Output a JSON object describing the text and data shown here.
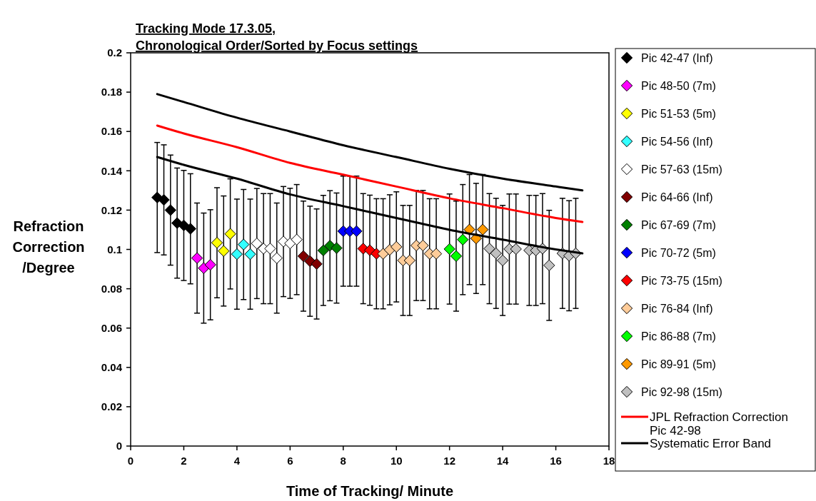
{
  "chart_data": {
    "type": "scatter",
    "title": "Tracking Mode 17.3.05,\nChronological Order/Sorted by Focus settings",
    "xlabel": "Time of Tracking/ Minute",
    "ylabel": "Refraction Correction /Degree",
    "xlim": [
      0,
      18
    ],
    "xticks": [
      0,
      2,
      4,
      6,
      8,
      10,
      12,
      14,
      16,
      18
    ],
    "ylim": [
      0,
      0.2
    ],
    "yticks": [
      0,
      0.02,
      0.04,
      0.06,
      0.08,
      0.1,
      0.12,
      0.14,
      0.16,
      0.18,
      0.2
    ],
    "marker": "diamond",
    "legend": "right",
    "grid": false,
    "series": [
      {
        "name": "Pic 42-47 (Inf)",
        "color": "#000000",
        "x": [
          1,
          1.25,
          1.5,
          1.75,
          2,
          2.25
        ],
        "values": [
          0.1264,
          0.1252,
          0.12,
          0.1134,
          0.1122,
          0.1105
        ],
        "errors": [
          0.028,
          0.028,
          0.028,
          0.028,
          0.028,
          0.028
        ]
      },
      {
        "name": "Pic 48-50 (7m)",
        "color": "#ff00ff",
        "x": [
          2.5,
          2.75,
          3
        ],
        "values": [
          0.0956,
          0.0905,
          0.0922
        ],
        "errors": [
          0.028,
          0.028,
          0.028
        ]
      },
      {
        "name": "Pic 51-53 (5m)",
        "color": "#ffff00",
        "x": [
          3.25,
          3.5,
          3.75
        ],
        "values": [
          0.1034,
          0.0992,
          0.1079
        ],
        "errors": [
          0.028,
          0.028,
          0.028
        ]
      },
      {
        "name": "Pic 54-56 (Inf)",
        "color": "#33ffff",
        "x": [
          4,
          4.25,
          4.5
        ],
        "values": [
          0.0976,
          0.1025,
          0.0976
        ],
        "errors": [
          0.028,
          0.028,
          0.028
        ]
      },
      {
        "name": "Pic 57-63 (15m)",
        "color": "#ffffff",
        "x": [
          4.75,
          5,
          5.25,
          5.5,
          5.75,
          6,
          6.25
        ],
        "values": [
          0.103,
          0.1004,
          0.1004,
          0.0956,
          0.104,
          0.1031,
          0.105
        ],
        "errors": [
          0.028,
          0.028,
          0.028,
          0.028,
          0.028,
          0.028,
          0.028
        ]
      },
      {
        "name": "Pic 64-66 (Inf)",
        "color": "#800000",
        "x": [
          6.5,
          6.75,
          7
        ],
        "values": [
          0.0966,
          0.094,
          0.0926
        ],
        "errors": [
          0.028,
          0.028,
          0.028
        ]
      },
      {
        "name": "Pic 67-69 (7m)",
        "color": "#008000",
        "x": [
          7.25,
          7.5,
          7.75
        ],
        "values": [
          0.0995,
          0.1019,
          0.1007
        ],
        "errors": [
          0.028,
          0.028,
          0.028
        ]
      },
      {
        "name": "Pic 70-72 (5m)",
        "color": "#0000ff",
        "x": [
          8,
          8.25,
          8.5
        ],
        "values": [
          0.1093,
          0.1093,
          0.1093
        ],
        "errors": [
          0.028,
          0.028,
          0.028
        ]
      },
      {
        "name": "Pic 73-75 (15m)",
        "color": "#ff0000",
        "x": [
          8.75,
          9,
          9.25
        ],
        "values": [
          0.1004,
          0.0996,
          0.0978
        ],
        "errors": [
          0.028,
          0.028,
          0.028
        ]
      },
      {
        "name": "Pic 76-84 (Inf)",
        "color": "#ffcc99",
        "x": [
          9.5,
          9.75,
          10,
          10.25,
          10.5,
          10.75,
          11,
          11.25,
          11.5
        ],
        "values": [
          0.0978,
          0.0998,
          0.1013,
          0.0944,
          0.0944,
          0.102,
          0.102,
          0.0978,
          0.0978
        ],
        "errors": [
          0.028,
          0.028,
          0.028,
          0.028,
          0.028,
          0.028,
          0.028,
          0.028,
          0.028
        ]
      },
      {
        "name": "Pic 86-88 (7m)",
        "color": "#00ff00",
        "x": [
          12,
          12.25,
          12.5
        ],
        "values": [
          0.1002,
          0.0966,
          0.105
        ],
        "errors": [
          0.028,
          0.028,
          0.028
        ]
      },
      {
        "name": "Pic 89-91 (5m)",
        "color": "#ff9900",
        "x": [
          12.75,
          13,
          13.25
        ],
        "values": [
          0.1101,
          0.1056,
          0.1101
        ],
        "errors": [
          0.028,
          0.028,
          0.028
        ]
      },
      {
        "name": "Pic 92-98 (15m)",
        "color": "#c0c0c0",
        "x": [
          13.5,
          13.75,
          14,
          14.25,
          14.5,
          15,
          15.25,
          15.5,
          15.75,
          16.25,
          16.5,
          16.75
        ],
        "values": [
          0.1004,
          0.098,
          0.0944,
          0.1002,
          0.1002,
          0.0995,
          0.0995,
          0.1004,
          0.0919,
          0.098,
          0.0968,
          0.098
        ],
        "errors": [
          0.028,
          0.028,
          0.028,
          0.028,
          0.028,
          0.028,
          0.028,
          0.028,
          0.028,
          0.028,
          0.028,
          0.028
        ]
      },
      {
        "name": "JPL Refraction Correction Pic 42-98",
        "type": "line",
        "marker": "none",
        "color": "#ff0000",
        "x": [
          1,
          2,
          4,
          6,
          8,
          10,
          12,
          14,
          16,
          17
        ],
        "values": [
          0.163,
          0.159,
          0.152,
          0.144,
          0.138,
          0.132,
          0.126,
          0.121,
          0.116,
          0.114
        ]
      },
      {
        "name": "Systematic Error Band",
        "type": "line",
        "marker": "none",
        "color": "#000000",
        "x": [
          1,
          2,
          4,
          6,
          8,
          10,
          12,
          14,
          16,
          17
        ],
        "values": [
          0.179,
          0.175,
          0.167,
          0.16,
          0.153,
          0.147,
          0.141,
          0.136,
          0.132,
          0.13
        ]
      },
      {
        "type": "line",
        "marker": "none",
        "color": "#000000",
        "x": [
          1,
          2,
          4,
          6,
          8,
          10,
          12,
          14,
          16,
          17
        ],
        "values": [
          0.147,
          0.143,
          0.136,
          0.128,
          0.122,
          0.116,
          0.11,
          0.105,
          0.1,
          0.098
        ]
      }
    ]
  }
}
